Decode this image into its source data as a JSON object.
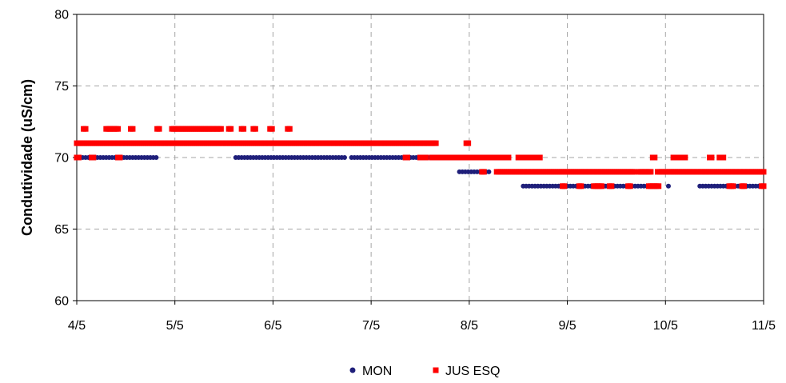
{
  "chart_data": {
    "type": "scatter",
    "ylabel": "Condutividade (uS/cm)",
    "xlabel": "",
    "ylim": [
      60,
      80
    ],
    "xlim": [
      0,
      7
    ],
    "yticks": [
      "60",
      "65",
      "70",
      "75",
      "80"
    ],
    "xticks": [
      "4/5",
      "5/5",
      "6/5",
      "7/5",
      "8/5",
      "9/5",
      "10/5",
      "11/5"
    ],
    "grid": true,
    "legend_position": "bottom",
    "series": [
      {
        "name": "MON",
        "color": "#1f1f7a",
        "marker": "circle",
        "segments": [
          {
            "x0": 0.0,
            "x1": 0.82,
            "y": 70,
            "step": 0.03
          },
          {
            "x0": 1.1,
            "x1": 1.17,
            "y": 71,
            "step": 0.03
          },
          {
            "x0": 1.62,
            "x1": 2.75,
            "y": 70,
            "step": 0.03
          },
          {
            "x0": 2.8,
            "x1": 3.65,
            "y": 70,
            "step": 0.03
          },
          {
            "x0": 3.9,
            "x1": 4.2,
            "y": 69,
            "step": 0.03
          },
          {
            "x0": 4.55,
            "x1": 5.95,
            "y": 68,
            "step": 0.03
          },
          {
            "x0": 6.03,
            "x1": 6.05,
            "y": 68,
            "step": 0.03
          },
          {
            "x0": 6.35,
            "x1": 7.0,
            "y": 68,
            "step": 0.03
          }
        ]
      },
      {
        "name": "JUS ESQ",
        "color": "#ff0000",
        "marker": "square",
        "segments": [
          {
            "x0": 0.0,
            "x1": 3.67,
            "y": 71,
            "step": 0.02
          },
          {
            "x0": 0.0,
            "x1": 0.02,
            "y": 70,
            "step": 0.02
          },
          {
            "x0": 0.15,
            "x1": 0.17,
            "y": 70,
            "step": 0.02
          },
          {
            "x0": 0.42,
            "x1": 0.44,
            "y": 70,
            "step": 0.02
          },
          {
            "x0": 0.07,
            "x1": 0.09,
            "y": 72,
            "step": 0.02
          },
          {
            "x0": 0.3,
            "x1": 0.42,
            "y": 72,
            "step": 0.02
          },
          {
            "x0": 0.55,
            "x1": 0.57,
            "y": 72,
            "step": 0.02
          },
          {
            "x0": 0.82,
            "x1": 0.84,
            "y": 72,
            "step": 0.02
          },
          {
            "x0": 0.97,
            "x1": 1.47,
            "y": 72,
            "step": 0.02
          },
          {
            "x0": 1.55,
            "x1": 1.57,
            "y": 72,
            "step": 0.02
          },
          {
            "x0": 1.68,
            "x1": 1.7,
            "y": 72,
            "step": 0.02
          },
          {
            "x0": 1.8,
            "x1": 1.82,
            "y": 72,
            "step": 0.02
          },
          {
            "x0": 1.97,
            "x1": 1.99,
            "y": 72,
            "step": 0.02
          },
          {
            "x0": 2.15,
            "x1": 2.17,
            "y": 72,
            "step": 0.02
          },
          {
            "x0": 3.35,
            "x1": 3.37,
            "y": 70,
            "step": 0.02
          },
          {
            "x0": 3.5,
            "x1": 3.56,
            "y": 70,
            "step": 0.02
          },
          {
            "x0": 3.62,
            "x1": 4.4,
            "y": 70,
            "step": 0.02
          },
          {
            "x0": 3.97,
            "x1": 3.99,
            "y": 71,
            "step": 0.02
          },
          {
            "x0": 4.5,
            "x1": 4.72,
            "y": 70,
            "step": 0.02
          },
          {
            "x0": 4.13,
            "x1": 4.15,
            "y": 69,
            "step": 0.02
          },
          {
            "x0": 4.28,
            "x1": 5.68,
            "y": 69,
            "step": 0.02
          },
          {
            "x0": 5.73,
            "x1": 5.85,
            "y": 69,
            "step": 0.02
          },
          {
            "x0": 5.92,
            "x1": 7.0,
            "y": 69,
            "step": 0.02
          },
          {
            "x0": 5.87,
            "x1": 5.89,
            "y": 70,
            "step": 0.02
          },
          {
            "x0": 6.08,
            "x1": 6.2,
            "y": 70,
            "step": 0.02
          },
          {
            "x0": 6.45,
            "x1": 6.47,
            "y": 70,
            "step": 0.02
          },
          {
            "x0": 6.55,
            "x1": 6.6,
            "y": 70,
            "step": 0.02
          },
          {
            "x0": 4.95,
            "x1": 4.97,
            "y": 68,
            "step": 0.02
          },
          {
            "x0": 5.12,
            "x1": 5.14,
            "y": 68,
            "step": 0.02
          },
          {
            "x0": 5.27,
            "x1": 5.35,
            "y": 68,
            "step": 0.02
          },
          {
            "x0": 5.43,
            "x1": 5.45,
            "y": 68,
            "step": 0.02
          },
          {
            "x0": 5.62,
            "x1": 5.64,
            "y": 68,
            "step": 0.02
          },
          {
            "x0": 5.83,
            "x1": 5.93,
            "y": 68,
            "step": 0.02
          },
          {
            "x0": 6.65,
            "x1": 6.7,
            "y": 68,
            "step": 0.02
          },
          {
            "x0": 6.78,
            "x1": 6.8,
            "y": 68,
            "step": 0.02
          },
          {
            "x0": 6.98,
            "x1": 7.0,
            "y": 68,
            "step": 0.02
          }
        ]
      }
    ]
  }
}
